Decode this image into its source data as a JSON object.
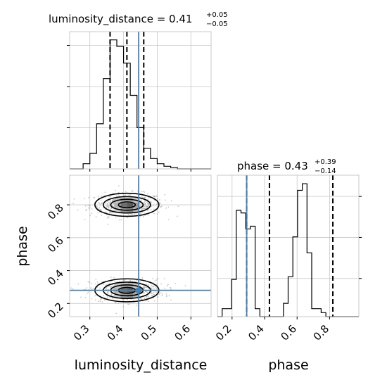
{
  "chart_data": [
    {
      "panel": "luminosity_distance-marginal",
      "type": "histogram",
      "title": "luminosity_distance = 0.41",
      "title_parts": {
        "label": "luminosity_distance = ",
        "value": "0.41",
        "plus": "+0.05",
        "minus": "−0.05"
      },
      "xlim": [
        0.24,
        0.66
      ],
      "bin_width": 0.02,
      "bin_edges_start": 0.24,
      "counts": [
        0,
        0,
        4,
        12,
        35,
        70,
        100,
        95,
        82,
        57,
        32,
        16,
        8,
        4,
        2,
        1,
        0,
        0,
        0,
        0,
        0
      ],
      "quantiles": [
        0.36,
        0.41,
        0.46
      ],
      "truth": 0.445,
      "grid": true
    },
    {
      "panel": "phase-marginal",
      "type": "histogram",
      "title": "phase = 0.43",
      "title_parts": {
        "label": "phase = ",
        "value": "0.43",
        "plus": "+0.39",
        "minus": "−0.14"
      },
      "xlim": [
        0.11,
        0.98
      ],
      "bin_width": 0.029,
      "bin_edges_start": 0.11,
      "counts": [
        0,
        6,
        6,
        28,
        80,
        78,
        66,
        68,
        6,
        0,
        0,
        0,
        0,
        0,
        10,
        30,
        60,
        95,
        100,
        48,
        6,
        6,
        3,
        0,
        0,
        0,
        0,
        0,
        0,
        0
      ],
      "quantiles": [
        0.29,
        0.43,
        0.82
      ],
      "truth": 0.29,
      "grid": true
    },
    {
      "panel": "2d-density",
      "type": "contour",
      "xlim": [
        0.24,
        0.66
      ],
      "ylim": [
        0.12,
        0.98
      ],
      "modes": [
        {
          "x": 0.41,
          "y": 0.8
        },
        {
          "x": 0.41,
          "y": 0.28
        }
      ],
      "truth": {
        "x": 0.445,
        "y": 0.28
      },
      "xlabel": "luminosity_distance",
      "ylabel": "phase",
      "grid": true
    }
  ],
  "ticks": {
    "lum": [
      "0.3",
      "0.4",
      "0.5",
      "0.6"
    ],
    "phase_y": [
      "0.2",
      "0.4",
      "0.6",
      "0.8"
    ],
    "phase_x": [
      "0.2",
      "0.4",
      "0.6",
      "0.8"
    ]
  },
  "colors": {
    "truth": "#4682b4",
    "hist": "#000000",
    "grid": "#c8c8c8",
    "contour": "#000000",
    "scatter": "#9a9a9a"
  },
  "labels": {
    "xlabel_lum": "luminosity_distance",
    "xlabel_phase": "phase",
    "ylabel_phase": "phase"
  }
}
